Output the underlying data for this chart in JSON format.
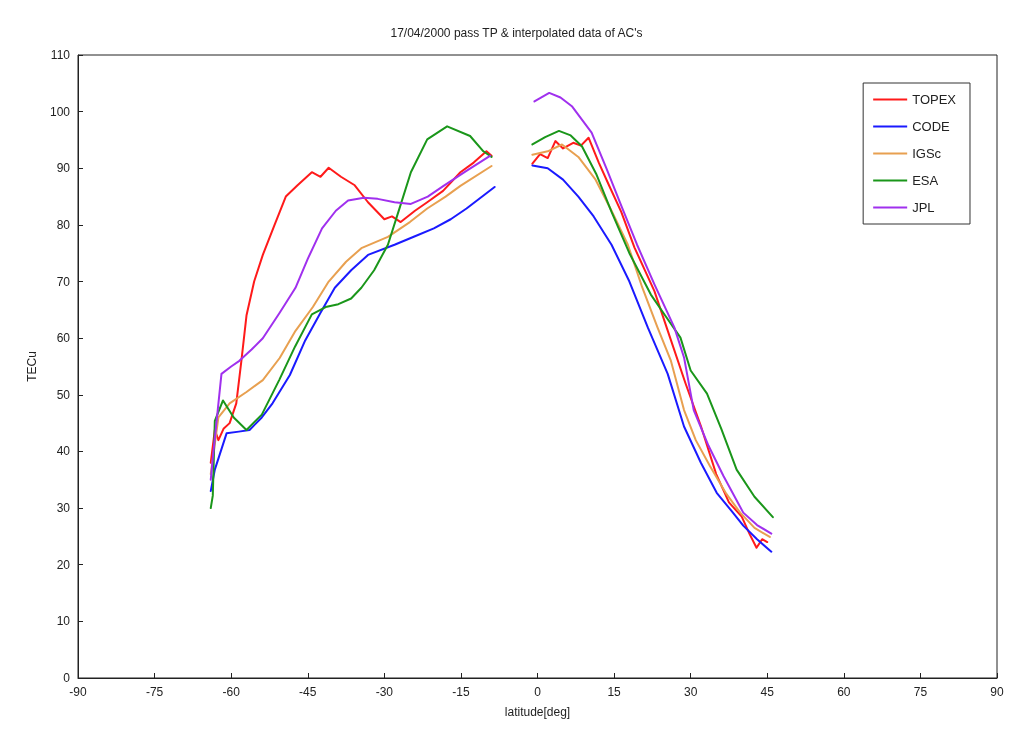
{
  "chart_data": {
    "type": "line",
    "title": "17/04/2000 pass TP & interpolated data of AC's",
    "xlabel": "latitude[deg]",
    "ylabel": "TECu",
    "xlim": [
      -90,
      90
    ],
    "xticks": [
      -90,
      -75,
      -60,
      -45,
      -30,
      -15,
      0,
      15,
      30,
      45,
      60,
      75,
      90
    ],
    "ylim": [
      0,
      110
    ],
    "yticks": [
      0,
      10,
      20,
      30,
      40,
      50,
      60,
      70,
      80,
      90,
      100,
      110
    ],
    "grid": false,
    "legend": "top right",
    "marker": "none",
    "line_style": "solid",
    "series": [
      {
        "name": "TOPEX",
        "color": "#ff1a1a",
        "x": [
          -64,
          -63.2,
          -62.5,
          -61.5,
          -60.3,
          -59,
          -58,
          -57,
          -55.5,
          -53.8,
          -51.5,
          -49.3,
          -47,
          -44.2,
          -42.5,
          -40.9,
          -38.5,
          -35.8,
          -33.2,
          -30,
          -28.5,
          -26.8,
          -24,
          -21.6,
          -18.5,
          -15.1,
          -12.5,
          -10,
          -9,
          -5,
          -1,
          0.5,
          2,
          3.5,
          5,
          7,
          8.5,
          10,
          12,
          14,
          16.4,
          19,
          22.9,
          26,
          29,
          32,
          35,
          37.5,
          40,
          41.5,
          42.9,
          44,
          45
        ],
        "values": [
          38,
          43.8,
          42,
          44,
          45,
          48.5,
          56,
          64,
          70,
          74.7,
          80,
          85,
          87,
          89.3,
          88.5,
          90.1,
          88.5,
          87,
          84,
          81,
          81.5,
          80.5,
          82.5,
          84,
          86,
          89.3,
          91,
          93,
          92.2,
          null,
          90.8,
          92.5,
          91.8,
          94.8,
          93.5,
          94.5,
          94,
          95.4,
          91,
          87,
          82.3,
          76,
          68.3,
          60,
          52,
          44.5,
          36,
          31,
          28.5,
          25.5,
          23,
          24.5,
          24
        ]
      },
      {
        "name": "CODE",
        "color": "#1a1aff",
        "x": [
          -64,
          -63.2,
          -60.9,
          -58.5,
          -56.4,
          -54,
          -51.9,
          -48.5,
          -45.5,
          -42.5,
          -39.7,
          -36.5,
          -33.2,
          -28,
          -24,
          -20.3,
          -17,
          -13.9,
          -8.4,
          -5,
          -1,
          2,
          5,
          8,
          11,
          14.5,
          18,
          21.6,
          25.5,
          28.7,
          32,
          35.1,
          38,
          40.3,
          43,
          45.8
        ],
        "values": [
          33,
          36.8,
          43.2,
          43.5,
          43.8,
          46,
          48.5,
          53.5,
          59.6,
          64.5,
          68.9,
          72,
          74.7,
          76.5,
          78,
          79.4,
          81,
          82.9,
          86.7,
          null,
          90.5,
          90,
          88,
          85,
          81.5,
          76.5,
          70,
          61.9,
          53.7,
          44.4,
          38,
          32.7,
          29.5,
          26.9,
          24.5,
          22.3
        ]
      },
      {
        "name": "IGSc",
        "color": "#e8a050",
        "x": [
          -64,
          -62.5,
          -60.3,
          -57,
          -53.8,
          -50.5,
          -47.4,
          -44,
          -40.9,
          -37.5,
          -34.5,
          -29.3,
          -25,
          -21.6,
          -18,
          -15.1,
          -9,
          -5,
          -1,
          2,
          4.8,
          8,
          11.3,
          14.5,
          17.7,
          20.5,
          23.5,
          26.1,
          28.7,
          31,
          33.8,
          37,
          39.7,
          42.5,
          45.5
        ],
        "values": [
          36,
          46,
          48.5,
          50.5,
          52.6,
          56.5,
          61.3,
          65.5,
          70,
          73.5,
          75.9,
          77.9,
          80.5,
          82.9,
          85,
          86.9,
          90.4,
          null,
          92.4,
          93,
          94.2,
          92,
          88.1,
          82.5,
          76.5,
          69,
          61.9,
          56.1,
          47.3,
          42,
          37.4,
          32.5,
          29.2,
          26.5,
          24.9
        ]
      },
      {
        "name": "ESA",
        "color": "#1a961a",
        "x": [
          -64,
          -63.6,
          -63.2,
          -61.6,
          -59.5,
          -57,
          -54,
          -50.6,
          -47.5,
          -44.2,
          -41.5,
          -39,
          -36.5,
          -34.5,
          -32,
          -29.3,
          -27,
          -24.8,
          -21.6,
          -17.7,
          -13.2,
          -10.6,
          -9,
          -5,
          -1,
          1.5,
          4.2,
          6.5,
          8.7,
          11.5,
          14.5,
          18,
          22.2,
          25,
          28,
          30,
          33.2,
          36,
          39,
          42.5,
          46.1
        ],
        "values": [
          30,
          32.2,
          45.4,
          49,
          46,
          43.8,
          46.5,
          52.6,
          58.5,
          64.2,
          65.5,
          66,
          67,
          68.9,
          72,
          76.5,
          83,
          89.3,
          95.1,
          97.4,
          95.7,
          93,
          92,
          null,
          94.2,
          95.5,
          96.6,
          95.8,
          93.9,
          89,
          82.3,
          75,
          67.7,
          64,
          60.1,
          54.3,
          50.2,
          44,
          36.8,
          32,
          28.4
        ]
      },
      {
        "name": "JPL",
        "color": "#a030ee",
        "x": [
          -64,
          -63.5,
          -61.9,
          -60,
          -58.4,
          -56,
          -53.8,
          -50.5,
          -47.4,
          -45,
          -42.2,
          -39.5,
          -37.1,
          -34,
          -31.3,
          -28,
          -24.8,
          -21.5,
          -18.4,
          -14,
          -9.3,
          -5,
          -0.6,
          2.3,
          4.5,
          6.8,
          10.6,
          13.5,
          16.4,
          19.5,
          22.9,
          26.8,
          28.7,
          30.6,
          33.5,
          36.4,
          40.3,
          43,
          45.8
        ],
        "values": [
          35,
          39.7,
          53.7,
          55,
          56,
          58,
          60,
          64.5,
          68.9,
          74,
          79.4,
          82.5,
          84.3,
          84.8,
          84.6,
          84,
          83.7,
          85,
          86.9,
          89.5,
          92.2,
          null,
          101.8,
          103.3,
          102.5,
          100.9,
          96.3,
          90,
          83.4,
          76.5,
          69.5,
          61.9,
          56.6,
          47.3,
          41,
          35.7,
          29.2,
          27,
          25.5
        ]
      }
    ]
  }
}
